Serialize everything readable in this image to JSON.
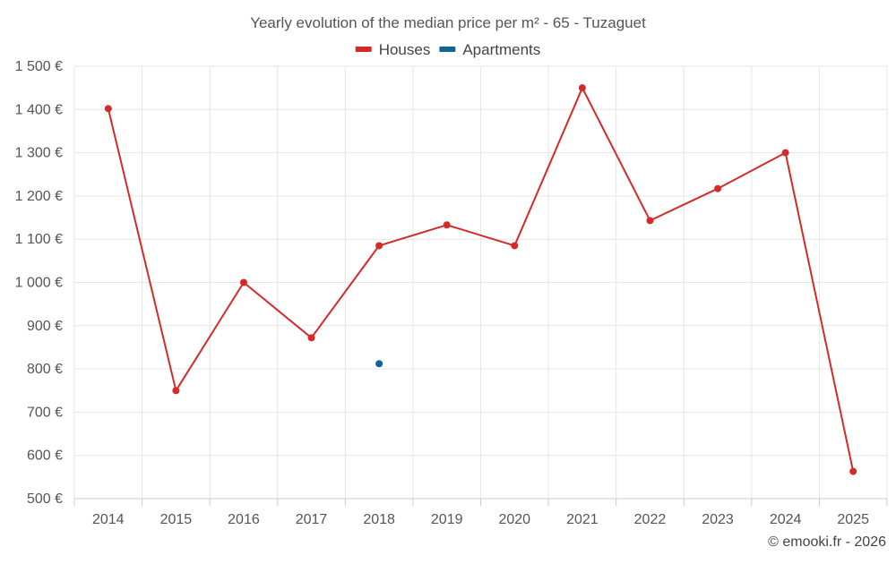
{
  "chart_data": {
    "type": "line",
    "title": "Yearly evolution of the median price per m² - 65 - Tuzaguet",
    "categories": [
      "2014",
      "2015",
      "2016",
      "2017",
      "2018",
      "2019",
      "2020",
      "2021",
      "2022",
      "2023",
      "2024",
      "2025"
    ],
    "series": [
      {
        "name": "Houses",
        "color": "#d42a2a",
        "values": [
          1402,
          750,
          1000,
          872,
          1085,
          1133,
          1085,
          1450,
          1143,
          1217,
          1300,
          563
        ]
      },
      {
        "name": "Apartments",
        "color": "#0e6596",
        "values": [
          null,
          null,
          null,
          null,
          812,
          null,
          null,
          null,
          null,
          null,
          null,
          null
        ]
      }
    ],
    "ylim": [
      500,
      1500
    ],
    "yticks": [
      500,
      600,
      700,
      800,
      900,
      1000,
      1100,
      1200,
      1300,
      1400,
      1500
    ],
    "ytick_labels": [
      "500 €",
      "600 €",
      "700 €",
      "800 €",
      "900 €",
      "1 000 €",
      "1 100 €",
      "1 200 €",
      "1 300 €",
      "1 400 €",
      "1 500 €"
    ],
    "xlabel": "",
    "ylabel": "",
    "grid": true,
    "legend_position": "top-center"
  },
  "credit": "© emooki.fr - 2026"
}
